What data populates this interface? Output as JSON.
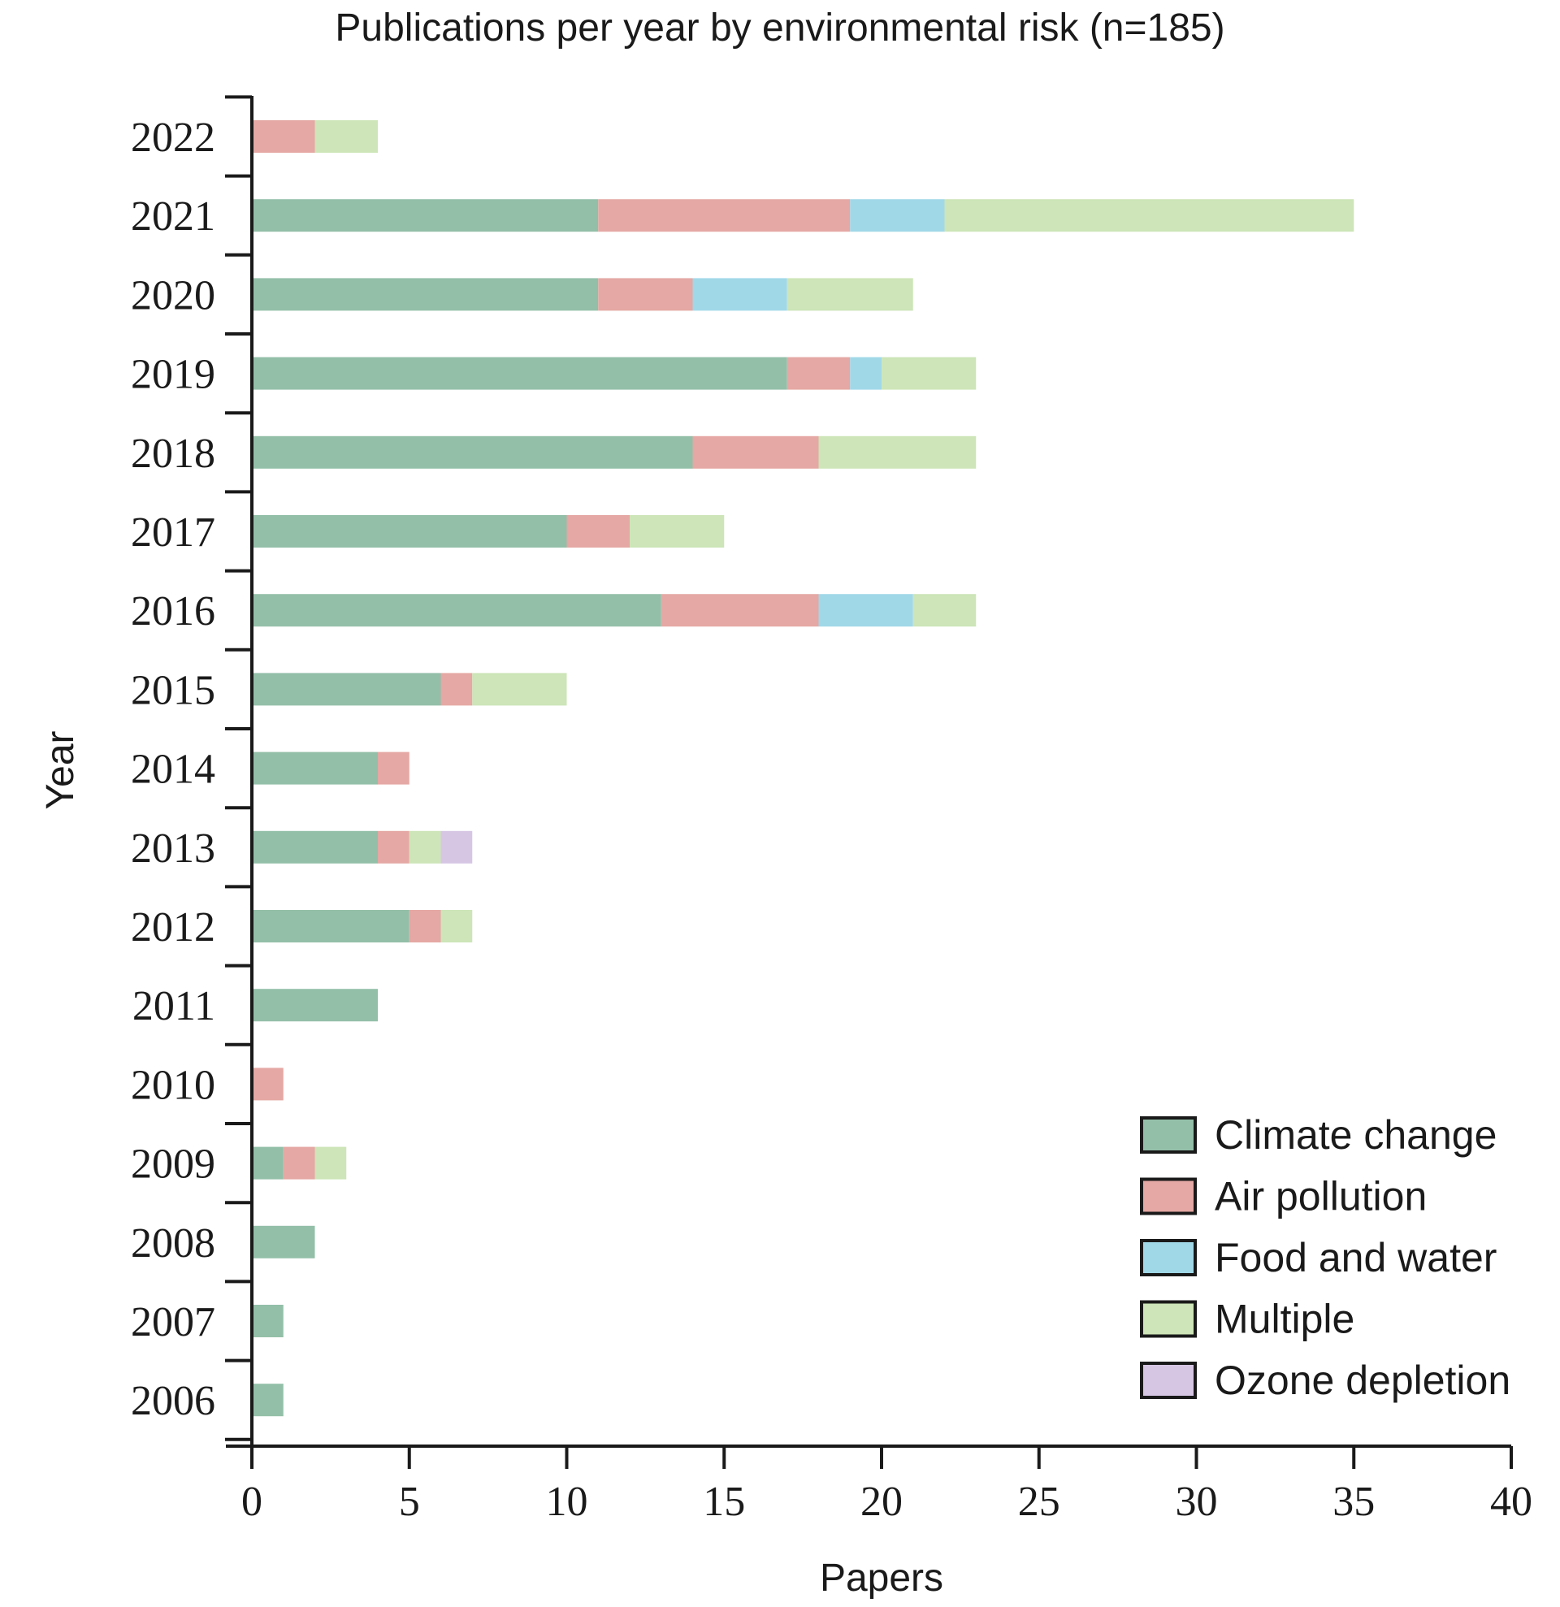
{
  "chart_data": {
    "type": "bar",
    "orientation": "horizontal",
    "stacked": true,
    "title": "Publications per year by environmental risk (n=185)",
    "xlabel": "Papers",
    "ylabel": "Year",
    "xlim": [
      0,
      40
    ],
    "xticks": [
      "0",
      "5",
      "10",
      "15",
      "20",
      "25",
      "30",
      "35",
      "40"
    ],
    "categories": [
      "2022",
      "2021",
      "2020",
      "2019",
      "2018",
      "2017",
      "2016",
      "2015",
      "2014",
      "2013",
      "2012",
      "2011",
      "2010",
      "2009",
      "2008",
      "2007",
      "2006"
    ],
    "series": [
      {
        "name": "Climate change",
        "color": "#93bfa8",
        "values": [
          0,
          11,
          11,
          17,
          14,
          10,
          13,
          6,
          4,
          4,
          5,
          4,
          0,
          1,
          2,
          1,
          1
        ]
      },
      {
        "name": "Air pollution",
        "color": "#e5a8a4",
        "values": [
          2,
          8,
          3,
          2,
          4,
          2,
          5,
          1,
          1,
          1,
          1,
          0,
          1,
          1,
          0,
          0,
          0
        ]
      },
      {
        "name": "Food and water",
        "color": "#a1d8e8",
        "values": [
          0,
          3,
          3,
          1,
          0,
          0,
          3,
          0,
          0,
          0,
          0,
          0,
          0,
          0,
          0,
          0,
          0
        ]
      },
      {
        "name": "Multiple",
        "color": "#cde5b8",
        "values": [
          2,
          13,
          4,
          3,
          5,
          3,
          2,
          3,
          0,
          1,
          1,
          0,
          0,
          1,
          0,
          0,
          0
        ]
      },
      {
        "name": "Ozone depletion",
        "color": "#d6c6e4",
        "values": [
          0,
          0,
          0,
          0,
          0,
          0,
          0,
          0,
          0,
          1,
          0,
          0,
          0,
          0,
          0,
          0,
          0
        ]
      }
    ],
    "grid": false,
    "legend_position": "bottom-right"
  }
}
